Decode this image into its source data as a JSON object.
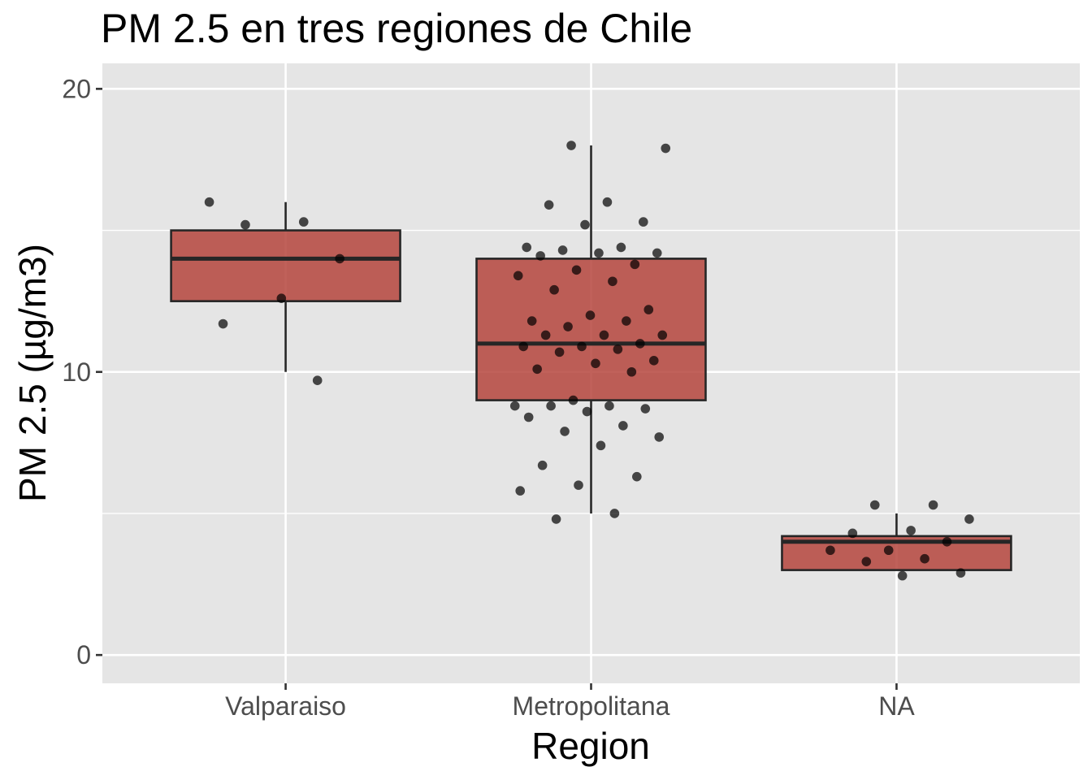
{
  "chart_data": {
    "type": "boxplot",
    "title": "PM 2.5 en tres regiones de Chile",
    "xlabel": "Region",
    "ylabel": "PM 2.5 (µg/m3)",
    "ylim": [
      -1,
      20.9
    ],
    "yticks": [
      0,
      10,
      20
    ],
    "grid": true,
    "colors": {
      "panel_background": "#e5e5e5",
      "box_fill": "#b5453d",
      "box_fill_opacity": 0.85,
      "points": "#000000"
    },
    "categories": [
      "Valparaiso",
      "Metropolitana",
      "NA"
    ],
    "boxes": [
      {
        "category": "Valparaiso",
        "whisker_low": 10.0,
        "q1": 12.5,
        "median": 14.0,
        "q3": 15.0,
        "whisker_high": 16.0
      },
      {
        "category": "Metropolitana",
        "whisker_low": 5.0,
        "q1": 9.0,
        "median": 11.0,
        "q3": 14.0,
        "whisker_high": 18.0
      },
      {
        "category": "NA",
        "whisker_low": 3.0,
        "q1": 3.0,
        "median": 4.0,
        "q3": 4.2,
        "whisker_high": 5.0
      }
    ],
    "points": [
      {
        "category": "Valparaiso",
        "values": [
          16.0,
          15.3,
          15.2,
          14.0,
          12.6,
          11.7,
          9.7
        ]
      },
      {
        "category": "Metropolitana",
        "values": [
          18.0,
          17.9,
          16.0,
          15.9,
          15.3,
          15.2,
          14.4,
          14.4,
          14.3,
          14.2,
          14.2,
          14.1,
          13.8,
          13.6,
          13.4,
          13.2,
          12.9,
          12.2,
          12.0,
          11.8,
          11.8,
          11.6,
          11.3,
          11.3,
          11.3,
          11.0,
          10.9,
          10.9,
          10.8,
          10.7,
          10.4,
          10.3,
          10.1,
          10.0,
          9.0,
          8.8,
          8.8,
          8.8,
          8.7,
          8.6,
          8.4,
          8.1,
          7.9,
          7.7,
          7.4,
          6.7,
          6.3,
          6.0,
          5.8,
          5.0,
          4.8
        ]
      },
      {
        "category": "NA",
        "values": [
          5.3,
          5.3,
          4.8,
          4.4,
          4.3,
          4.0,
          3.7,
          3.7,
          3.4,
          3.3,
          2.9,
          2.8
        ]
      }
    ]
  }
}
